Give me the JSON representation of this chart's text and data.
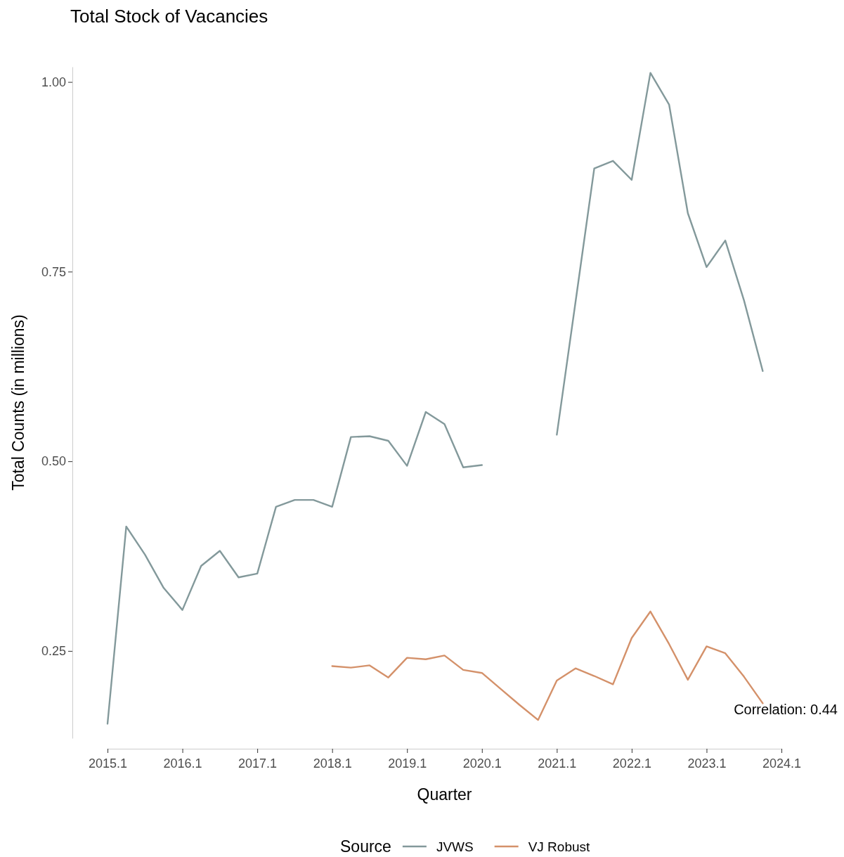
{
  "chart_data": {
    "type": "line",
    "title": "Total Stock of Vacancies",
    "xlabel": "Quarter",
    "ylabel": "Total Counts (in millions)",
    "legend_title": "Source",
    "legend": "bottom",
    "grid": false,
    "categories": [
      "2015.1",
      null,
      null,
      null,
      "2016.1",
      null,
      null,
      null,
      "2017.1",
      null,
      null,
      null,
      "2018.1",
      null,
      null,
      null,
      "2019.1",
      null,
      null,
      null,
      "2020.1",
      null,
      null,
      null,
      "2021.1",
      null,
      null,
      null,
      "2022.1",
      null,
      null,
      null,
      "2023.1",
      null,
      null,
      null,
      "2024.1"
    ],
    "ylim": [
      0.135,
      1.02
    ],
    "yticks": [
      {
        "value": 0.25,
        "label": "0.25"
      },
      {
        "value": 0.5,
        "label": "0.50"
      },
      {
        "value": 0.75,
        "label": "0.75"
      },
      {
        "value": 1,
        "label": "1.00"
      }
    ],
    "series": [
      {
        "name": "JVWS",
        "color": "#83999b",
        "values": [
          0.154,
          0.414,
          0.377,
          0.333,
          0.304,
          0.362,
          0.382,
          0.347,
          0.352,
          0.44,
          0.449,
          0.449,
          0.44,
          0.532,
          0.533,
          0.527,
          0.494,
          0.565,
          0.549,
          0.492,
          0.495,
          null,
          null,
          null,
          0.535,
          0.71,
          0.886,
          0.896,
          0.871,
          1.012,
          0.97,
          0.827,
          0.756,
          0.791,
          0.712,
          0.619,
          null
        ]
      },
      {
        "name": "VJ Robust",
        "color": "#d4916a",
        "values": [
          null,
          null,
          null,
          null,
          null,
          null,
          null,
          null,
          null,
          null,
          null,
          null,
          0.23,
          0.228,
          0.231,
          0.215,
          0.241,
          0.239,
          0.244,
          0.225,
          0.221,
          0.2,
          0.179,
          0.159,
          0.211,
          0.227,
          0.217,
          0.206,
          0.267,
          0.302,
          0.259,
          0.212,
          0.256,
          0.247,
          0.216,
          0.181,
          null
        ]
      }
    ],
    "annotations": [
      "Correlation:  0.44"
    ]
  }
}
